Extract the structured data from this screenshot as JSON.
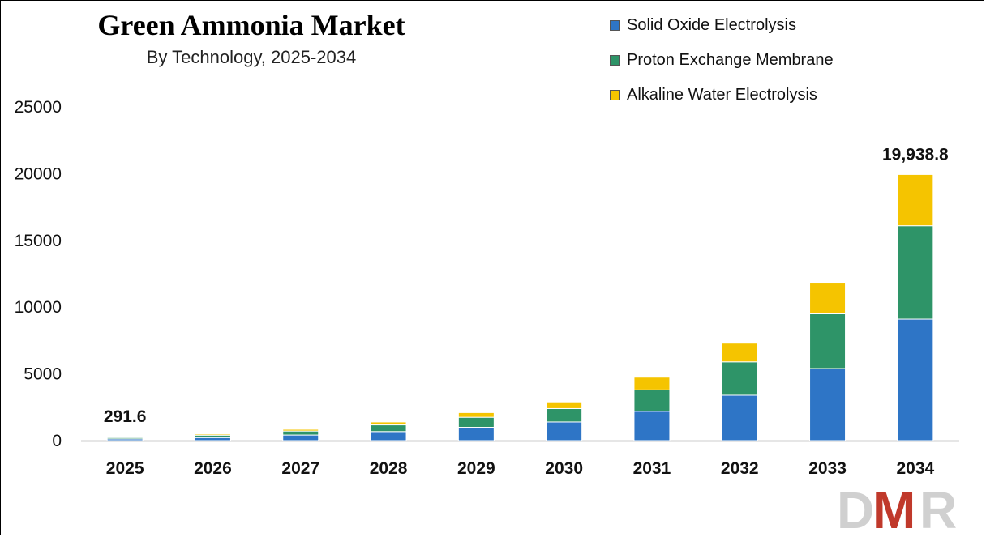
{
  "chart_data": {
    "type": "bar",
    "stacked": true,
    "title": "Green Ammonia Market",
    "subtitle": "By Technology, 2025-2034",
    "categories": [
      "2025",
      "2026",
      "2027",
      "2028",
      "2029",
      "2030",
      "2031",
      "2032",
      "2033",
      "2034"
    ],
    "series": [
      {
        "name": "Solid Oxide Electrolysis",
        "color": "#2E75C6",
        "values": [
          130,
          230,
          420,
          680,
          1000,
          1400,
          2200,
          3400,
          5400,
          9100
        ]
      },
      {
        "name": "Proton Exchange Membrane",
        "color": "#2E9468",
        "values": [
          100,
          180,
          300,
          500,
          750,
          1000,
          1600,
          2500,
          4100,
          7000
        ]
      },
      {
        "name": "Alkaline Water Electrolysis",
        "color": "#F5C400",
        "values": [
          61.6,
          90,
          130,
          220,
          350,
          500,
          950,
          1400,
          2300,
          3838.8
        ]
      }
    ],
    "data_labels": [
      {
        "category": "2025",
        "text": "291.6"
      },
      {
        "category": "2034",
        "text": "19,938.8"
      }
    ],
    "ylim": [
      0,
      25000
    ],
    "yticks": [
      "0",
      "5000",
      "10000",
      "15000",
      "20000",
      "25000"
    ],
    "grid": false,
    "legend_position": "top-right"
  },
  "watermark": {
    "text": "DMR",
    "colors": [
      "#E5E5E5",
      "#C0392B"
    ]
  }
}
